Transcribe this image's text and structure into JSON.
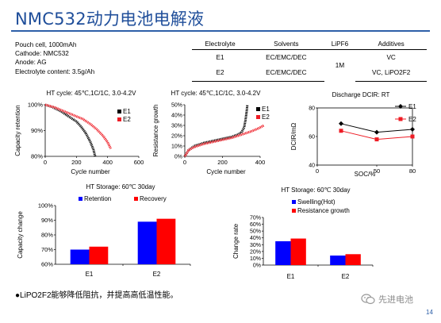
{
  "title": "NMC532动力电池电解液",
  "cell_info": [
    "Pouch cell, 1000mAh",
    "Cathode: NMC532",
    "Anode: AG",
    "Electrolyte content: 3.5g/Ah"
  ],
  "table": {
    "headers": [
      "Electrolyte",
      "Solvents",
      "LiPF6",
      "Additives"
    ],
    "rows": [
      [
        "E1",
        "EC/EMC/DEC",
        "1M",
        "VC"
      ],
      [
        "E2",
        "EC/EMC/DEC",
        "1M",
        "VC, LiPO2F2"
      ]
    ]
  },
  "chart_data": [
    {
      "type": "line",
      "title": "HT cycle: 45℃,1C/1C, 3.0-4.2V",
      "xlabel": "Cycle number",
      "ylabel": "Capacity retention",
      "xlim": [
        0,
        600
      ],
      "ylim": [
        0.8,
        1.0
      ],
      "xticks": [
        "0",
        "200",
        "400",
        "600"
      ],
      "yticks": [
        "80%",
        "90%",
        "100%"
      ],
      "series": [
        {
          "name": "E1",
          "color": "#000000",
          "points": [
            [
              0,
              1.0
            ],
            [
              50,
              0.99
            ],
            [
              100,
              0.975
            ],
            [
              150,
              0.955
            ],
            [
              200,
              0.935
            ],
            [
              230,
              0.915
            ],
            [
              260,
              0.89
            ],
            [
              290,
              0.855
            ],
            [
              310,
              0.825
            ],
            [
              320,
              0.8
            ]
          ]
        },
        {
          "name": "E2",
          "color": "#ee1c25",
          "points": [
            [
              0,
              1.0
            ],
            [
              60,
              0.99
            ],
            [
              120,
              0.975
            ],
            [
              180,
              0.96
            ],
            [
              240,
              0.945
            ],
            [
              290,
              0.925
            ],
            [
              330,
              0.905
            ],
            [
              370,
              0.88
            ],
            [
              400,
              0.855
            ],
            [
              420,
              0.83
            ]
          ]
        }
      ]
    },
    {
      "type": "line",
      "title": "HT cycle: 45℃,1C/1C, 3.0-4.2V",
      "xlabel": "Cycle number",
      "ylabel": "Resistance growth",
      "xlim": [
        0,
        400
      ],
      "ylim": [
        0,
        50
      ],
      "xticks": [
        "0",
        "200",
        "400"
      ],
      "yticks": [
        "0%",
        "10%",
        "20%",
        "30%",
        "40%",
        "50%"
      ],
      "series": [
        {
          "name": "E1",
          "color": "#000000",
          "points": [
            [
              0,
              0
            ],
            [
              20,
              6
            ],
            [
              50,
              10
            ],
            [
              100,
              13
            ],
            [
              150,
              15
            ],
            [
              200,
              17
            ],
            [
              250,
              19
            ],
            [
              280,
              21
            ],
            [
              300,
              23
            ],
            [
              315,
              28
            ],
            [
              322,
              35
            ],
            [
              328,
              43
            ],
            [
              332,
              50
            ]
          ]
        },
        {
          "name": "E2",
          "color": "#ee1c25",
          "points": [
            [
              0,
              0
            ],
            [
              20,
              6
            ],
            [
              50,
              9
            ],
            [
              100,
              12
            ],
            [
              150,
              14
            ],
            [
              200,
              16
            ],
            [
              250,
              18
            ],
            [
              300,
              21
            ],
            [
              350,
              24
            ],
            [
              390,
              27
            ],
            [
              420,
              30
            ]
          ]
        }
      ]
    },
    {
      "type": "line",
      "title": "Discharge DCIR: RT",
      "xlabel": "SOC/%",
      "ylabel": "DCIR/mΩ",
      "xlim": [
        0,
        80
      ],
      "ylim": [
        40,
        80
      ],
      "xticks": [
        "0",
        "50",
        "80"
      ],
      "yticks": [
        "40",
        "60",
        "80"
      ],
      "series": [
        {
          "name": "E1",
          "color": "#000000",
          "marker": "diamond",
          "points": [
            [
              20,
              69
            ],
            [
              50,
              63
            ],
            [
              80,
              65
            ]
          ]
        },
        {
          "name": "E2",
          "color": "#ee1c25",
          "marker": "square",
          "points": [
            [
              20,
              64
            ],
            [
              50,
              58
            ],
            [
              80,
              60
            ]
          ]
        }
      ]
    },
    {
      "type": "bar",
      "title": "HT Storage: 60℃ 30day",
      "ylabel": "Capacity change",
      "categories": [
        "E1",
        "E2"
      ],
      "ylim": [
        0.6,
        1.0
      ],
      "yticks": [
        "60%",
        "70%",
        "80%",
        "90%",
        "100%"
      ],
      "series": [
        {
          "name": "Retention",
          "color": "#0000ff",
          "values": [
            0.7,
            0.89
          ]
        },
        {
          "name": "Recovery",
          "color": "#ff0000",
          "values": [
            0.72,
            0.91
          ]
        }
      ]
    },
    {
      "type": "bar",
      "title": "HT Storage: 60℃ 30day",
      "ylabel": "Change rate",
      "categories": [
        "E1",
        "E2"
      ],
      "ylim": [
        0,
        0.7
      ],
      "yticks": [
        "0%",
        "10%",
        "20%",
        "30%",
        "40%",
        "50%",
        "60%",
        "70%"
      ],
      "series": [
        {
          "name": "Swelling(Hot)",
          "color": "#0000ff",
          "values": [
            0.35,
            0.14
          ]
        },
        {
          "name": "Resistance growth",
          "color": "#ff0000",
          "values": [
            0.39,
            0.16
          ]
        }
      ]
    }
  ],
  "note": "●LiPO2F2能够降低阻抗，并提高高低温性能。",
  "watermark": "先进电池",
  "page_number": "14",
  "colors": {
    "title": "#1f4e9a",
    "rule": "#2d5fa8",
    "series_black": "#000000",
    "series_red": "#ee1c25",
    "bar_blue": "#0000ff",
    "bar_red": "#ff0000"
  }
}
